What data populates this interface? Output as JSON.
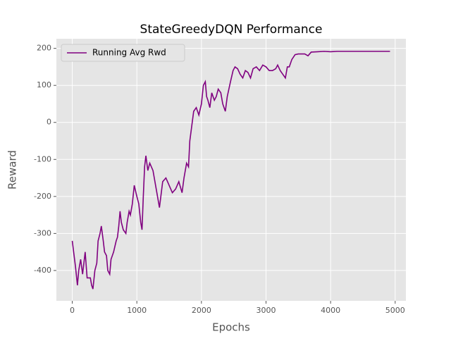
{
  "chart_data": {
    "type": "line",
    "title": "StateGreedyDQN Performance",
    "x_label": "Epochs",
    "y_label": "Reward",
    "x": [
      0,
      50,
      80,
      100,
      130,
      160,
      200,
      230,
      280,
      300,
      320,
      350,
      380,
      400,
      430,
      450,
      480,
      500,
      530,
      550,
      580,
      600,
      640,
      680,
      700,
      720,
      740,
      760,
      790,
      830,
      850,
      880,
      900,
      930,
      960,
      1000,
      1030,
      1060,
      1080,
      1100,
      1120,
      1140,
      1170,
      1200,
      1250,
      1300,
      1350,
      1400,
      1450,
      1500,
      1550,
      1600,
      1650,
      1700,
      1730,
      1770,
      1800,
      1820,
      1850,
      1880,
      1920,
      1960,
      2000,
      2030,
      2060,
      2080,
      2100,
      2130,
      2160,
      2200,
      2230,
      2260,
      2300,
      2330,
      2370,
      2400,
      2450,
      2490,
      2520,
      2560,
      2600,
      2640,
      2680,
      2720,
      2760,
      2800,
      2850,
      2900,
      2950,
      3000,
      3050,
      3100,
      3150,
      3180,
      3220,
      3260,
      3300,
      3330,
      3360,
      3400,
      3450,
      3500,
      3600,
      3650,
      3700,
      3800,
      3900,
      4000,
      4100,
      4300,
      4500,
      4920
    ],
    "series": [
      {
        "name": "Running Avg Rwd",
        "color": "#800080",
        "values": [
          -320,
          -390,
          -440,
          -400,
          -370,
          -410,
          -350,
          -420,
          -420,
          -440,
          -450,
          -400,
          -380,
          -320,
          -300,
          -280,
          -320,
          -350,
          -360,
          -400,
          -410,
          -370,
          -350,
          -320,
          -310,
          -280,
          -240,
          -270,
          -290,
          -300,
          -270,
          -240,
          -250,
          -220,
          -170,
          -200,
          -220,
          -270,
          -290,
          -200,
          -120,
          -90,
          -130,
          -110,
          -130,
          -180,
          -230,
          -160,
          -150,
          -170,
          -190,
          -180,
          -160,
          -190,
          -150,
          -110,
          -120,
          -50,
          -10,
          30,
          40,
          20,
          50,
          100,
          110,
          70,
          60,
          40,
          80,
          60,
          70,
          90,
          80,
          50,
          30,
          70,
          110,
          140,
          150,
          145,
          130,
          120,
          140,
          135,
          120,
          145,
          150,
          140,
          155,
          150,
          140,
          140,
          145,
          155,
          140,
          130,
          120,
          150,
          150,
          170,
          183,
          185,
          185,
          180,
          190,
          191,
          192,
          191,
          192,
          192,
          192,
          192
        ]
      }
    ],
    "xlim": [
      -246,
      5166
    ],
    "ylim": [
      -482,
      226
    ],
    "xticks": [
      0,
      1000,
      2000,
      3000,
      4000,
      5000
    ],
    "yticks": [
      -400,
      -300,
      -200,
      -100,
      0,
      100,
      200
    ],
    "grid": true,
    "legend": "upper left"
  }
}
